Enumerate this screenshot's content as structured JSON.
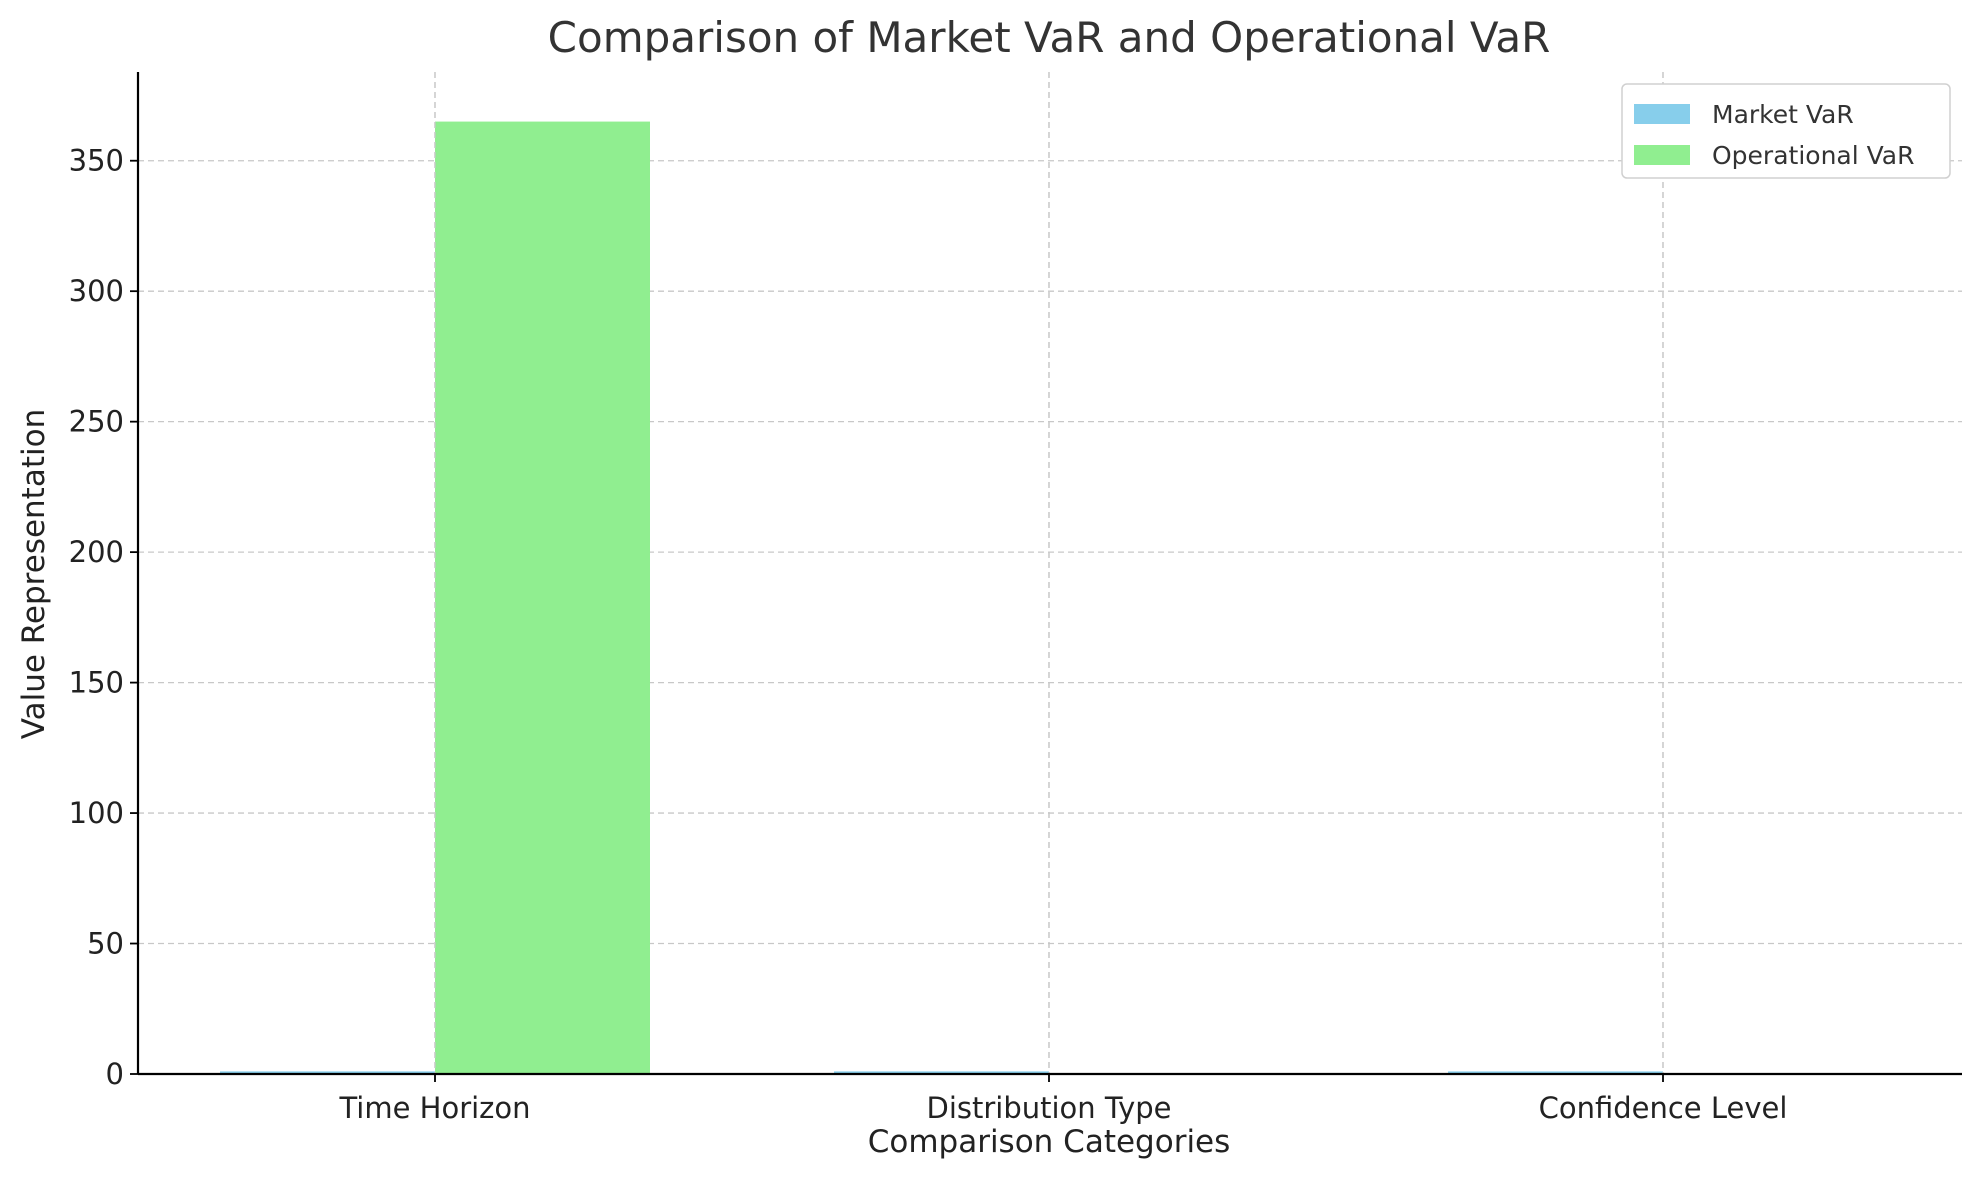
{
  "chart_data": {
    "type": "bar",
    "title": "Comparison of Market VaR and Operational VaR",
    "xlabel": "Comparison Categories",
    "ylabel": "Value Representation",
    "categories": [
      "Time Horizon",
      "Distribution Type",
      "Confidence Level"
    ],
    "series": [
      {
        "name": "Market VaR",
        "values": [
          1,
          1,
          0.99
        ],
        "color": "#87ceeb"
      },
      {
        "name": "Operational VaR",
        "values": [
          365,
          0,
          0
        ],
        "color": "#90ee90"
      }
    ],
    "ylim": [
      0,
      384
    ],
    "yticks": [
      0,
      50,
      100,
      150,
      200,
      250,
      300,
      350
    ],
    "grid": true,
    "legend": "top-right"
  }
}
